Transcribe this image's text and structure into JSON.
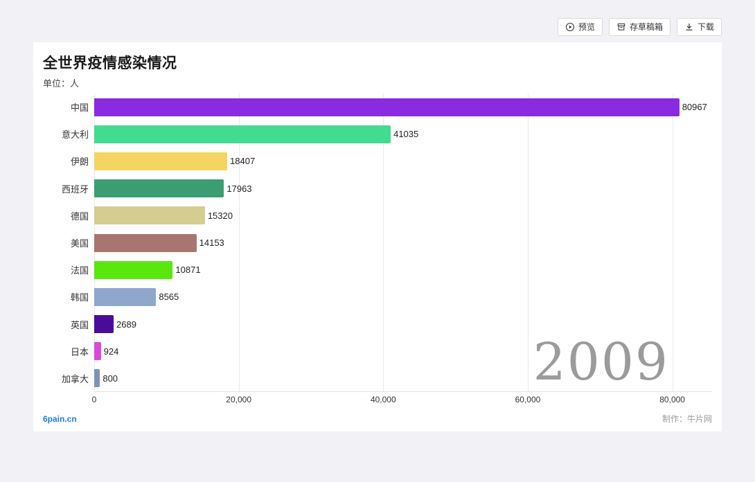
{
  "toolbar": {
    "preview": "预览",
    "draft": "存草稿箱",
    "download": "下载"
  },
  "header": {
    "title": "全世界疫情感染情况",
    "subtitle": "单位：人"
  },
  "chart_data": {
    "type": "bar",
    "orientation": "horizontal",
    "title": "全世界疫情感染情况",
    "unit": "人",
    "categories": [
      "中国",
      "意大利",
      "伊朗",
      "西班牙",
      "德国",
      "美国",
      "法国",
      "韩国",
      "英国",
      "日本",
      "加拿大"
    ],
    "values": [
      80967,
      41035,
      18407,
      17963,
      15320,
      14153,
      10871,
      8565,
      2689,
      924,
      800
    ],
    "colors": [
      "#8a2be2",
      "#41dc8e",
      "#f5d464",
      "#3b9e72",
      "#d5cd90",
      "#a87570",
      "#59e80e",
      "#8fa6cd",
      "#4a0b9b",
      "#db48db",
      "#7d94b6"
    ],
    "x_ticks": [
      0,
      20000,
      40000,
      60000,
      80000
    ],
    "x_tick_labels": [
      "0",
      "20,000",
      "40,000",
      "60,000",
      "80,000"
    ],
    "x_max": 85500,
    "grid": true,
    "year_label": "2009"
  },
  "footer": {
    "site": "6pain.cn",
    "credit": "制作：牛片网"
  }
}
